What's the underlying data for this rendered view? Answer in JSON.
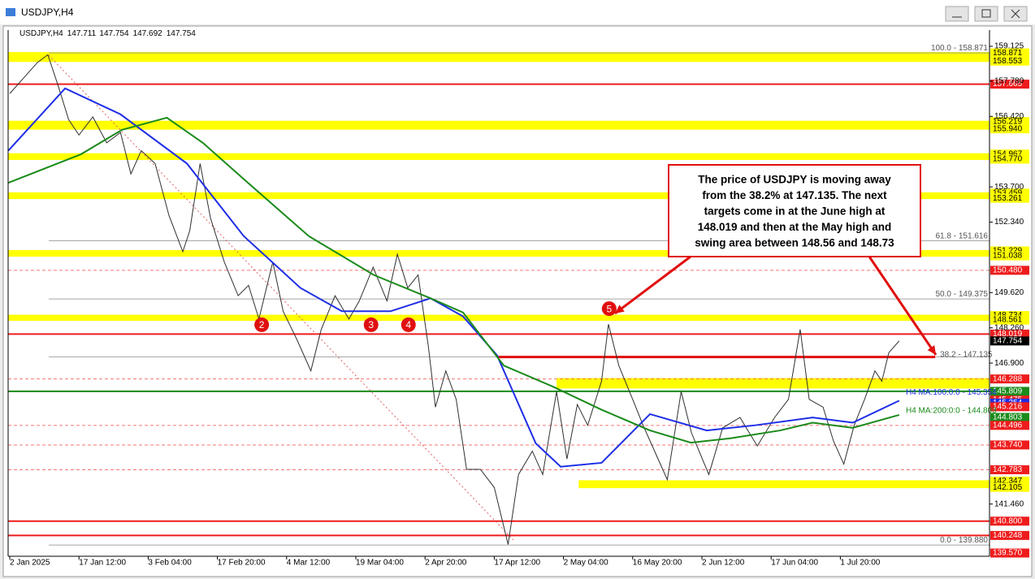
{
  "window_title": "USDJPY,H4",
  "chart_data": {
    "type": "line",
    "symbol": "USDJPY,H4",
    "ohlc": [
      147.711,
      147.754,
      147.692,
      147.754
    ],
    "xlim": [
      -0.0235,
      14.155
    ],
    "xticks": [
      {
        "value": 0,
        "label": "2 Jan 2025"
      },
      {
        "value": 1,
        "label": "17 Jan 12:00"
      },
      {
        "value": 2,
        "label": "3 Feb 04:00"
      },
      {
        "value": 3,
        "label": "17 Feb 20:00"
      },
      {
        "value": 4,
        "label": "4 Mar 12:00"
      },
      {
        "value": 5,
        "label": "19 Mar 04:00"
      },
      {
        "value": 6,
        "label": "2 Apr 20:00"
      },
      {
        "value": 7,
        "label": "17 Apr 12:00"
      },
      {
        "value": 8,
        "label": "2 May 04:00"
      },
      {
        "value": 9,
        "label": "16 May 20:00"
      },
      {
        "value": 10,
        "label": "2 Jun 12:00"
      },
      {
        "value": 11,
        "label": "17 Jun 04:00"
      },
      {
        "value": 12,
        "label": "1 Jul 20:00"
      }
    ],
    "ylim": [
      139.445,
      159.752
    ],
    "yticks": [
      159.125,
      {
        "value": 157.78,
        "label": "157.780"
      },
      {
        "value": 156.42,
        "label": "156.420"
      },
      {
        "value": 153.7,
        "label": "153.700"
      },
      {
        "value": 152.34,
        "label": "152.340"
      },
      {
        "value": 149.62,
        "label": "149.620"
      },
      {
        "value": 148.26,
        "label": "148.260"
      },
      {
        "value": 146.9,
        "label": "146.900"
      },
      {
        "value": 141.46,
        "label": "141.460"
      }
    ],
    "series": [
      {
        "color": "#303030",
        "x": [
          0,
          0.2,
          0.4,
          0.55,
          0.7,
          0.85,
          1.0,
          1.2,
          1.4,
          1.6,
          1.75,
          1.9,
          2.1,
          2.3,
          2.5,
          2.6,
          2.75,
          2.9,
          3.1,
          3.3,
          3.45,
          3.6,
          3.8,
          3.95,
          4.15,
          4.35,
          4.5,
          4.7,
          4.9,
          5.05,
          5.25,
          5.45,
          5.6,
          5.75,
          5.9,
          6.05,
          6.15,
          6.3,
          6.45,
          6.6,
          6.8,
          7.0,
          7.2,
          7.35,
          7.55,
          7.7,
          7.9,
          8.05,
          8.2,
          8.35,
          8.55,
          8.65,
          8.8,
          9.0,
          9.15,
          9.35,
          9.5,
          9.7,
          9.85,
          10.1,
          10.3,
          10.55,
          10.8,
          11.05,
          11.25,
          11.42,
          11.55,
          11.75,
          11.9,
          12.05,
          12.2,
          12.35,
          12.5,
          12.6,
          12.7,
          12.85
        ],
        "values": [
          157.3,
          157.9,
          158.5,
          158.8,
          157.6,
          156.3,
          155.7,
          156.4,
          155.4,
          155.8,
          154.2,
          155.1,
          154.6,
          152.6,
          151.2,
          152.0,
          154.6,
          152.5,
          150.8,
          149.5,
          149.9,
          148.6,
          150.8,
          148.9,
          147.8,
          146.6,
          148.2,
          149.5,
          148.6,
          149.3,
          150.6,
          149.3,
          151.1,
          149.8,
          150.3,
          147.5,
          145.2,
          146.6,
          145.5,
          142.8,
          142.8,
          142.1,
          139.9,
          142.6,
          143.5,
          142.6,
          145.8,
          143.2,
          145.3,
          144.5,
          146.2,
          148.4,
          146.8,
          145.5,
          144.5,
          143.3,
          142.4,
          145.8,
          144.2,
          142.6,
          144.4,
          144.8,
          143.7,
          144.8,
          145.5,
          148.2,
          145.5,
          145.2,
          143.9,
          143.0,
          144.5,
          145.5,
          146.6,
          146.2,
          147.3,
          147.754
        ]
      },
      {
        "name": "H4 MA:100:0:0 - 145.354",
        "color": "#1e2ee6",
        "x": [
          -0.02,
          0.8,
          1.6,
          2.56,
          3.38,
          4.2,
          4.8,
          5.5,
          6.08,
          6.55,
          7.04,
          7.6,
          7.96,
          8.55,
          9.25,
          10.07,
          10.77,
          11.6,
          12.18,
          12.85
        ],
        "values": [
          155.1,
          157.5,
          156.5,
          154.6,
          151.8,
          149.8,
          148.9,
          148.9,
          149.4,
          148.7,
          147.2,
          143.8,
          142.9,
          143.05,
          144.93,
          144.3,
          144.5,
          144.8,
          144.6,
          145.45
        ]
      },
      {
        "name": "H4 MA:200:0:0 - 144.803",
        "color": "#1a8a1a",
        "x": [
          -0.02,
          1.03,
          1.62,
          2.27,
          2.79,
          3.38,
          4.32,
          5.26,
          6.08,
          6.55,
          7.14,
          7.84,
          8.55,
          9.25,
          9.84,
          10.42,
          11.13,
          11.6,
          12.18,
          12.85
        ],
        "values": [
          153.86,
          154.96,
          155.9,
          156.37,
          155.4,
          154.0,
          151.8,
          150.3,
          149.4,
          148.85,
          146.8,
          146.0,
          145.1,
          144.3,
          143.83,
          144.0,
          144.3,
          144.6,
          144.4,
          144.9
        ]
      }
    ],
    "zone_color": "#ffff00",
    "zones": [
      {
        "from": 158.553,
        "to": 158.871
      },
      {
        "from": 155.94,
        "to": 156.219
      },
      {
        "from": 154.77,
        "to": 154.967
      },
      {
        "from": 153.261,
        "to": 153.459
      },
      {
        "from": 151.038,
        "to": 151.229
      },
      {
        "from": 148.561,
        "to": 148.734
      },
      {
        "from": 145.95,
        "to": 146.288,
        "start": 7.9
      },
      {
        "from": 142.105,
        "to": 142.347,
        "start": 8.22
      }
    ],
    "levels": [
      {
        "value": 158.871,
        "label": "158.871",
        "color": "#ffff00"
      },
      {
        "value": 158.553,
        "label": "158.553",
        "color": "#ffff00"
      },
      {
        "value": 157.665,
        "label": "157.665",
        "color": "#ee1c1c",
        "line": "solid"
      },
      {
        "value": 156.219,
        "label": "156.219",
        "color": "#ffff00"
      },
      {
        "value": 155.94,
        "label": "155.940",
        "color": "#ffff00"
      },
      {
        "value": 154.967,
        "label": "154.967",
        "color": "#ffff00"
      },
      {
        "value": 154.77,
        "label": "154.770",
        "color": "#ffff00"
      },
      {
        "value": 153.459,
        "label": "153.459",
        "color": "#ffff00"
      },
      {
        "value": 153.261,
        "label": "153.261",
        "color": "#ffff00"
      },
      {
        "value": 151.229,
        "label": "151.229",
        "color": "#ffff00"
      },
      {
        "value": 151.038,
        "label": "151.038",
        "color": "#ffff00"
      },
      {
        "value": 150.48,
        "label": "150.480",
        "color": "#ee1c1c",
        "line": "dashed"
      },
      {
        "value": 148.734,
        "label": "148.734",
        "color": "#ffff00"
      },
      {
        "value": 148.561,
        "label": "148.561",
        "color": "#ffff00"
      },
      {
        "value": 148.019,
        "label": "148.019",
        "color": "#ee1c1c",
        "line": "solid"
      },
      {
        "value": 147.754,
        "label": "147.754",
        "color": "#000000"
      },
      {
        "value": 146.288,
        "label": "146.288",
        "color": "#ee1c1c",
        "line": "dashed"
      },
      {
        "value": 145.809,
        "label": "145.809",
        "color": "#1a8a1a",
        "line": "solid"
      },
      {
        "value": 145.475,
        "label": "145.475",
        "color": "#ee1c1c"
      },
      {
        "value": 145.354,
        "label": "145.354",
        "color": "#1e2ee6"
      },
      {
        "value": 145.216,
        "label": "145.216",
        "color": "#ee1c1c"
      },
      {
        "value": 144.803,
        "label": "144.803",
        "color": "#1a8a1a"
      },
      {
        "value": 144.496,
        "label": "144.496",
        "color": "#ee1c1c",
        "line": "dashed"
      },
      {
        "value": 143.74,
        "label": "143.740",
        "color": "#ee1c1c",
        "line": "dashed"
      },
      {
        "value": 142.783,
        "label": "142.783",
        "color": "#ee1c1c",
        "line": "dashed"
      },
      {
        "value": 142.347,
        "label": "142.347",
        "color": "#ffff00"
      },
      {
        "value": 142.105,
        "label": "142.105",
        "color": "#ffff00"
      },
      {
        "value": 140.8,
        "label": "140.800",
        "color": "#ee1c1c",
        "line": "solid"
      },
      {
        "value": 140.248,
        "label": "140.248",
        "color": "#ee1c1c",
        "line": "solid"
      },
      {
        "value": 139.57,
        "label": "139.570",
        "color": "#ee1c1c"
      }
    ],
    "fib_levels": [
      {
        "value": 158.871,
        "label": "100.0 - 158.871"
      },
      {
        "value": 151.616,
        "label": "61.8 - 151.616"
      },
      {
        "value": 149.375,
        "label": "50.0 - 149.375"
      },
      {
        "value": 147.135,
        "label": "38.2 - 147.135",
        "highlight": [
          7.04,
          13.37
        ]
      },
      {
        "value": 139.88,
        "label": "0.0 - 139.880"
      }
    ],
    "annotations": [
      {
        "text": "2",
        "x": 3.64,
        "y": 148.38
      },
      {
        "text": "3",
        "x": 5.22,
        "y": 148.38
      },
      {
        "text": "4",
        "x": 5.76,
        "y": 148.38
      },
      {
        "text": "5",
        "x": 8.66,
        "y": 149.0
      }
    ],
    "callout": [
      "The price of USDJPY is moving away",
      "from the 38.2% at 147.135.  The next",
      "targets come in at the June high at",
      "148.019 and then at the May high and",
      "swing area  between 148.56 and 148.73"
    ]
  }
}
